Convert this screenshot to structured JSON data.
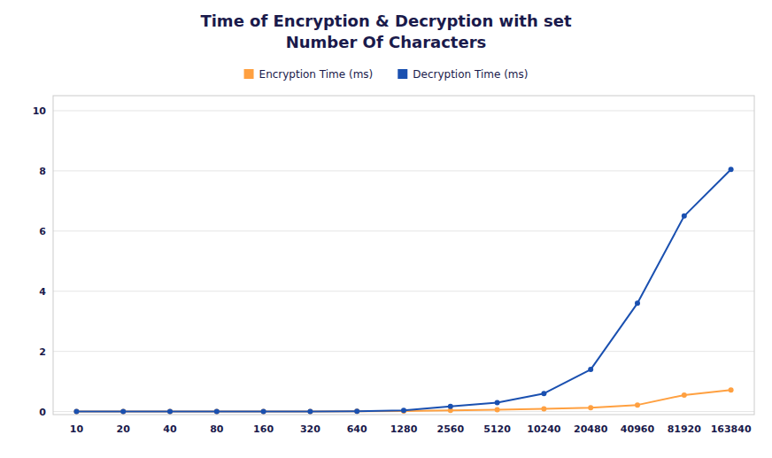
{
  "chart_data": {
    "type": "line",
    "title": "Time of Encryption & Decryption with set\nNumber Of Characters",
    "categories": [
      "10",
      "20",
      "40",
      "80",
      "160",
      "320",
      "640",
      "1280",
      "2560",
      "5120",
      "10240",
      "20480",
      "40960",
      "81920",
      "163840"
    ],
    "series": [
      {
        "name": "Encryption Time (ms)",
        "color": "#FFA040",
        "marker": "circle",
        "values": [
          0.003,
          0.003,
          0.003,
          0.003,
          0.003,
          0.003,
          0.008,
          0.015,
          0.04,
          0.065,
          0.09,
          0.13,
          0.22,
          0.55,
          0.72
        ]
      },
      {
        "name": "Decryption Time (ms)",
        "color": "#1A50B0",
        "marker": "circle",
        "values": [
          0.003,
          0.003,
          0.003,
          0.003,
          0.003,
          0.003,
          0.008,
          0.04,
          0.17,
          0.3,
          0.6,
          1.4,
          3.6,
          6.5,
          8.05
        ]
      }
    ],
    "ylim": [
      -0.1,
      10.5
    ],
    "yticks": [
      0,
      2,
      4,
      6,
      8,
      10
    ],
    "grid": true,
    "legend": "top"
  }
}
